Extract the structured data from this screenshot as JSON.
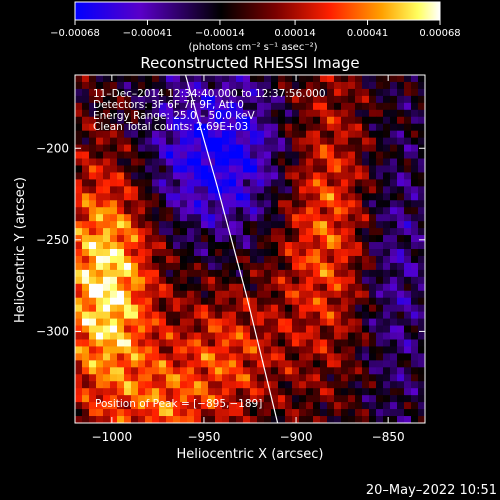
{
  "chart_data": {
    "type": "heatmap",
    "title": "Reconstructed RHESSI Image",
    "xlabel": "Heliocentric X (arcsec)",
    "ylabel": "Heliocentric Y (arcsec)",
    "xlim": [
      -1020,
      -830
    ],
    "ylim": [
      -350,
      -160
    ],
    "xticks": [
      -1000,
      -950,
      -900,
      -850
    ],
    "yticks": [
      -200,
      -250,
      -300
    ],
    "xtick_labels": [
      "−1000",
      "−950",
      "−900",
      "−850"
    ],
    "ytick_labels": [
      "−200",
      "−250",
      "−300"
    ],
    "colorbar": {
      "range": [
        -0.00068,
        0.00068
      ],
      "ticks": [
        -0.00068,
        -0.00041,
        -0.00014,
        0.00014,
        0.00041,
        0.00068
      ],
      "tick_labels": [
        "−0.00068",
        "−0.00041",
        "−0.00014",
        "0.00014",
        "0.00041",
        "0.00068"
      ],
      "units": "(photons cm⁻² s⁻¹ asec⁻²)",
      "colors": [
        "#0000ff",
        "#5a00c8",
        "#000000",
        "#7a0000",
        "#ff2000",
        "#ffa000",
        "#ffff60",
        "#ffffff"
      ]
    },
    "annotations": [
      "11–Dec–2014 12:34:40.000 to 12:37:56.000",
      "Detectors: 3F 6F 7F 9F, Att 0",
      "Energy Range: 25.0 – 50.0 keV",
      "Clean     Total counts: 2.69E+03"
    ],
    "peak_label": "Position of Peak = [−895,−189]",
    "limb_points": [
      [
        -960,
        -160
      ],
      [
        -943,
        -220
      ],
      [
        -927,
        -280
      ],
      [
        -910,
        -350
      ]
    ]
  },
  "footer": {
    "datetime": "20–May–2022 10:51"
  }
}
